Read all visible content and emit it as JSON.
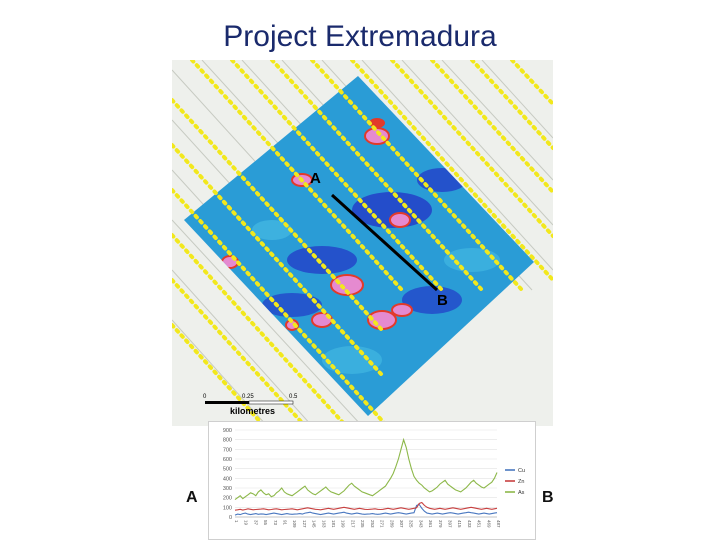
{
  "slide": {
    "title": "Project Extremadura"
  },
  "map": {
    "profile_start_label": "A",
    "profile_end_label": "B",
    "scale_bar": {
      "ticks": [
        "0",
        "0.25",
        "0.5"
      ],
      "unit": "kilometres"
    },
    "colors": {
      "background": "#eef0ec",
      "survey_fill": "#2a9cd6",
      "low": "#2340c8",
      "high": "#e58ad0",
      "anomaly_rim": "#e23a2a",
      "traverse_points": "#f2e81c",
      "profile_line": "#000000"
    }
  },
  "chart_labels": {
    "left": "A",
    "right": "B"
  },
  "chart_data": {
    "type": "line",
    "ylim": [
      0,
      900
    ],
    "yticks": [
      "0",
      "100",
      "200",
      "300",
      "400",
      "500",
      "600",
      "700",
      "800",
      "900"
    ],
    "legend_position": "right",
    "series": [
      {
        "name": "Cu",
        "color": "#4a78c0",
        "values": [
          20,
          30,
          25,
          35,
          40,
          30,
          25,
          30,
          35,
          28,
          32,
          30,
          25,
          30,
          35,
          40,
          35,
          30,
          25,
          30,
          35,
          30,
          28,
          30,
          32,
          35,
          30,
          40,
          45,
          50,
          40,
          35,
          30,
          25,
          30,
          35,
          40,
          35,
          30,
          35,
          40,
          45,
          50,
          40,
          35,
          30,
          35,
          40,
          35,
          30,
          28,
          30,
          32,
          35,
          30,
          28,
          30,
          35,
          40,
          35,
          30,
          35,
          40,
          45,
          40,
          35,
          30,
          35,
          40,
          45,
          120,
          130,
          90,
          60,
          40,
          35,
          30,
          35,
          40,
          35,
          30,
          35,
          40,
          45,
          40,
          35,
          30,
          35,
          40,
          45,
          50,
          45,
          40,
          35,
          30,
          35,
          40,
          35,
          30,
          35,
          40,
          45
        ]
      },
      {
        "name": "Zn",
        "color": "#c84040",
        "values": [
          70,
          75,
          80,
          72,
          78,
          85,
          80,
          75,
          78,
          80,
          82,
          85,
          80,
          75,
          78,
          82,
          85,
          80,
          75,
          78,
          80,
          82,
          85,
          80,
          75,
          80,
          85,
          90,
          95,
          90,
          85,
          80,
          78,
          75,
          80,
          85,
          90,
          85,
          80,
          85,
          90,
          95,
          100,
          95,
          90,
          85,
          80,
          85,
          90,
          85,
          80,
          78,
          80,
          82,
          85,
          80,
          78,
          80,
          85,
          90,
          85,
          80,
          85,
          90,
          95,
          90,
          85,
          80,
          85,
          90,
          95,
          140,
          150,
          120,
          100,
          90,
          85,
          80,
          85,
          90,
          85,
          80,
          85,
          90,
          95,
          90,
          85,
          80,
          85,
          90,
          95,
          100,
          95,
          90,
          85,
          80,
          85,
          90,
          85,
          80,
          85,
          90
        ]
      },
      {
        "name": "As",
        "color": "#8db84a",
        "values": [
          180,
          200,
          220,
          190,
          210,
          230,
          250,
          240,
          220,
          260,
          280,
          250,
          230,
          240,
          210,
          220,
          250,
          270,
          300,
          260,
          240,
          230,
          220,
          240,
          260,
          280,
          300,
          320,
          280,
          260,
          240,
          230,
          250,
          270,
          290,
          310,
          280,
          260,
          250,
          240,
          230,
          250,
          270,
          300,
          330,
          350,
          320,
          300,
          280,
          260,
          250,
          240,
          230,
          220,
          240,
          260,
          280,
          300,
          320,
          360,
          400,
          450,
          520,
          600,
          700,
          800,
          720,
          600,
          500,
          420,
          380,
          350,
          330,
          300,
          280,
          260,
          270,
          290,
          310,
          340,
          360,
          380,
          340,
          320,
          300,
          280,
          270,
          260,
          280,
          300,
          330,
          360,
          380,
          350,
          330,
          310,
          300,
          320,
          340,
          360,
          400,
          460
        ]
      }
    ],
    "x_tick_labels": [
      "1",
      "19",
      "37",
      "55",
      "73",
      "91",
      "109",
      "127",
      "145",
      "163",
      "181",
      "199",
      "217",
      "235",
      "253",
      "271",
      "289",
      "307",
      "325",
      "343",
      "361",
      "379",
      "397",
      "415",
      "433",
      "451",
      "469",
      "487"
    ]
  }
}
